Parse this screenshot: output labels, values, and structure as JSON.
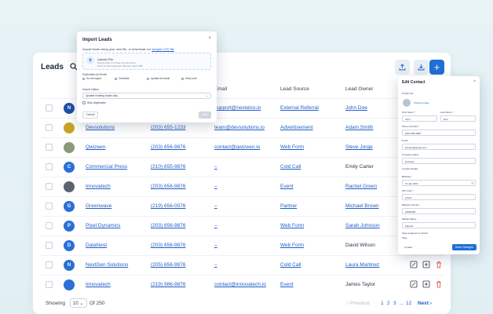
{
  "header": {
    "title": "Leads"
  },
  "columns": [
    "Email",
    "Lead Source",
    "Lead Owner"
  ],
  "rows": [
    {
      "logo": "N",
      "color": "#1f4fa8",
      "company": "",
      "phone": "",
      "email": "support@nextelco.io",
      "source": "External Referral",
      "owner": "John Doe",
      "company_link": false,
      "email_link": true,
      "owner_link": true
    },
    {
      "logo": "",
      "color": "#c9a227",
      "company": "Devsolutions",
      "phone": "(203) 655-1233",
      "email": "team@devsolutions.io",
      "source": "Advertisement",
      "owner": "Adam Smith",
      "company_link": true,
      "email_link": true,
      "owner_link": true
    },
    {
      "logo": "",
      "color": "#8a9a7a",
      "company": "Qwizeen",
      "phone": "(203) 656-9876",
      "email": "contact@qwizeen.io",
      "source": "Web Form",
      "owner": "Steve Jorge",
      "company_link": true,
      "email_link": true,
      "owner_link": true
    },
    {
      "logo": "C",
      "color": "#2a6fd6",
      "company": "Commercial Press",
      "phone": "(210) 655-9876",
      "email": "–",
      "source": "Cold Call",
      "owner": "Emily Carter",
      "company_link": true,
      "email_link": true,
      "owner_link": false
    },
    {
      "logo": "",
      "color": "#5b6470",
      "company": "Innovatech",
      "phone": "(203) 656-9876",
      "email": "–",
      "source": "Event",
      "owner": "Rachel Green",
      "company_link": true,
      "email_link": true,
      "owner_link": true
    },
    {
      "logo": "G",
      "color": "#2a6fd6",
      "company": "Greenwave",
      "phone": "(219) 656-0076",
      "email": "–",
      "source": "Partner",
      "owner": "Michael Brown",
      "company_link": true,
      "email_link": true,
      "owner_link": true
    },
    {
      "logo": "P",
      "color": "#2a6fd6",
      "company": "Pixel Dynamics",
      "phone": "(203) 656-9876",
      "email": "–",
      "source": "Web Form",
      "owner": "Sarah Johnson",
      "company_link": true,
      "email_link": true,
      "owner_link": true
    },
    {
      "logo": "D",
      "color": "#2a6fd6",
      "company": "DataNest",
      "phone": "(203) 656-9876",
      "email": "–",
      "source": "Web Form",
      "owner": "David Wilson",
      "company_link": true,
      "email_link": true,
      "owner_link": false
    },
    {
      "logo": "N",
      "color": "#2a6fd6",
      "company": "NextGen Solutions",
      "phone": "(205) 656-9876",
      "email": "–",
      "source": "Cold Call",
      "owner": "Laura Martinez",
      "company_link": true,
      "email_link": true,
      "owner_link": true
    },
    {
      "logo": "",
      "color": "#2a6fd6",
      "company": "Innovatech",
      "phone": "(219) 986-9876",
      "email": "contact@innovatech.io",
      "source": "Event",
      "owner": "James Taylor",
      "company_link": true,
      "email_link": true,
      "owner_link": false
    }
  ],
  "footer": {
    "showing": "Showing",
    "per_page": "10",
    "of_total": "Of 250",
    "previous": "Previous",
    "pages": [
      "1",
      "2",
      "3",
      "...",
      "12"
    ],
    "next": "Next"
  },
  "import_modal": {
    "title": "Import Leads",
    "description": "Import leads using your own file, or download our",
    "sample_link": "sample CSV file",
    "upload_title": "Upload File",
    "upload_hint": "Drag & drop or browse for document",
    "upload_hint2": "Only csv file supported. File size max 5 MB",
    "duplicates_label": "Duplicates by Email",
    "radio_options": [
      "Do not import",
      "Overwrite",
      "Update the blank",
      "Keep both"
    ],
    "import_option_label": "Import Option",
    "import_option_value": "Update existing leads only",
    "skip_label": "Skip duplicates",
    "cancel": "Cancel",
    "submit": "Next"
  },
  "edit_contact": {
    "title": "Edit Contact",
    "profile_label": "Profile Info",
    "change_image": "Change Image",
    "first_name_label": "First Name *",
    "first_name": "John",
    "last_name_label": "Last Name *",
    "last_name": "Doe",
    "phone_label": "Phone Number *",
    "phone": "(203) 555-0987",
    "email_label": "Email",
    "email": "johndoe@gmail.com",
    "company_label": "Company Name",
    "company": "Nextelco",
    "contact_details_label": "Contact Details",
    "birthday_label": "Birthday *",
    "birthday": "21 Jan 1997",
    "zip_label": "ZIP Code *",
    "zip": "12121",
    "balance_label": "Balance Number",
    "balance": "23000000",
    "marital_label": "Marital Status",
    "marital": "Married",
    "tags_label": "Tags assigned to contact",
    "tags_sub": "Tags",
    "tag_value": "Contact",
    "save": "Save Changes"
  }
}
